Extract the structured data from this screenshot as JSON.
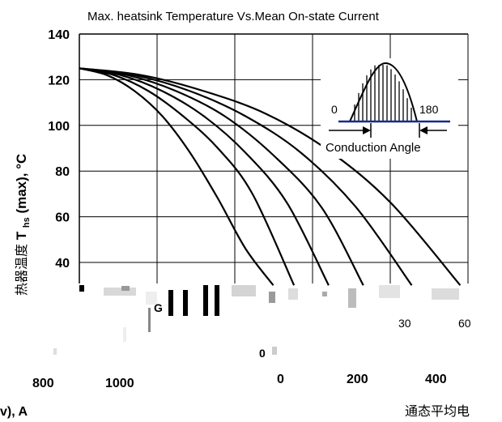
{
  "chart_data": {
    "type": "line",
    "title": "Max. heatsink Temperature Vs.Mean On-state Current",
    "ylabel_prefix": "热器温度",
    "ylabel_main": "T",
    "ylabel_sub": "hs",
    "ylabel_suffix": "(max), °C",
    "ylim": [
      30,
      140
    ],
    "yticks": [
      40,
      60,
      80,
      100,
      120,
      140
    ],
    "xlim": [
      0,
      1100
    ],
    "xticks": [],
    "grid": true,
    "series": [
      {
        "x": [
          0,
          80,
          160,
          240,
          320,
          400,
          480,
          560
        ],
        "y": [
          125,
          122,
          115,
          104,
          88,
          68,
          46,
          30
        ]
      },
      {
        "x": [
          0,
          100,
          200,
          300,
          400,
          500,
          620
        ],
        "y": [
          125,
          122,
          115,
          104,
          90,
          70,
          30
        ]
      },
      {
        "x": [
          0,
          120,
          240,
          360,
          480,
          600,
          720
        ],
        "y": [
          125,
          122,
          115,
          104,
          88,
          66,
          30
        ]
      },
      {
        "x": [
          0,
          140,
          280,
          420,
          560,
          700,
          820
        ],
        "y": [
          125,
          122,
          115,
          104,
          87,
          64,
          30
        ]
      },
      {
        "x": [
          0,
          160,
          320,
          480,
          640,
          800,
          960
        ],
        "y": [
          125,
          122,
          115,
          104,
          88,
          64,
          30
        ]
      },
      {
        "x": [
          0,
          180,
          360,
          540,
          720,
          900,
          1100
        ],
        "y": [
          125,
          122,
          115,
          105,
          89,
          66,
          30
        ]
      }
    ],
    "inset": {
      "label_start": "0",
      "label_end": "180",
      "caption": "Conduction Angle"
    }
  },
  "fragments": {
    "small_30": "30",
    "small_60": "60",
    "small_0": "0",
    "small_G": "G",
    "xlabel_tail": "v), A",
    "bottom_right": "通态平均电",
    "bottom_ticks": [
      "800",
      "1000",
      "0",
      "200",
      "400"
    ]
  }
}
